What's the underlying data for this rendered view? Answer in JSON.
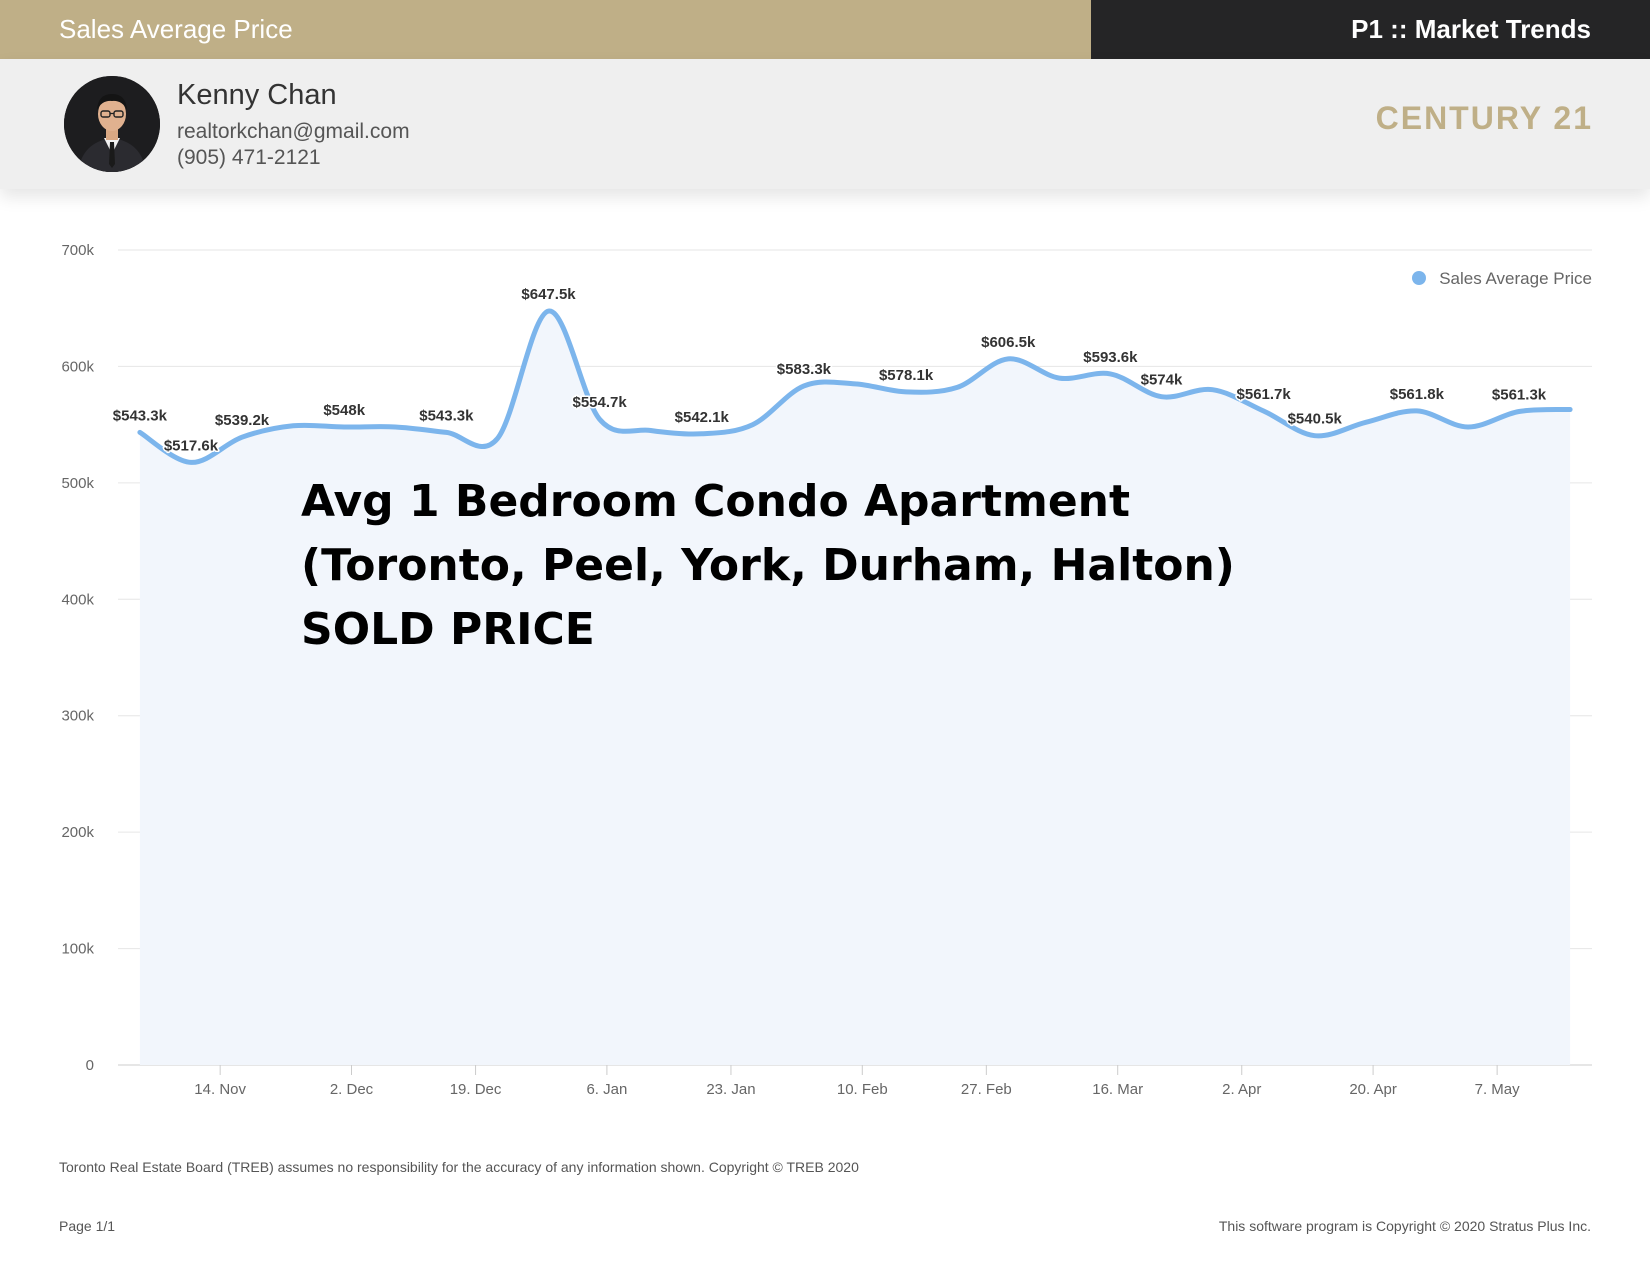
{
  "header": {
    "report_title": "Sales Average Price",
    "page_label": "P1 :: Market Trends"
  },
  "agent": {
    "name": "Kenny Chan",
    "email": "realtorkchan@gmail.com",
    "phone": "(905) 471-2121",
    "brand": "CENTURY 21"
  },
  "chart_data": {
    "type": "area",
    "series": [
      {
        "name": "Sales Average Price",
        "color": "#7cb5ec",
        "points": [
          {
            "x": "2019-11-03",
            "y": 543300,
            "label": "$543.3k"
          },
          {
            "x": "2019-11-10",
            "y": 517600,
            "label": "$517.6k"
          },
          {
            "x": "2019-11-17",
            "y": 539200,
            "label": "$539.2k"
          },
          {
            "x": "2019-11-24",
            "y": 549000,
            "label": ""
          },
          {
            "x": "2019-12-01",
            "y": 548000,
            "label": "$548k"
          },
          {
            "x": "2019-12-08",
            "y": 548000,
            "label": ""
          },
          {
            "x": "2019-12-15",
            "y": 543300,
            "label": "$543.3k"
          },
          {
            "x": "2019-12-22",
            "y": 538000,
            "label": ""
          },
          {
            "x": "2019-12-29",
            "y": 647500,
            "label": "$647.5k"
          },
          {
            "x": "2020-01-05",
            "y": 554700,
            "label": "$554.7k"
          },
          {
            "x": "2020-01-12",
            "y": 545000,
            "label": ""
          },
          {
            "x": "2020-01-19",
            "y": 542100,
            "label": "$542.1k"
          },
          {
            "x": "2020-01-26",
            "y": 550000,
            "label": ""
          },
          {
            "x": "2020-02-02",
            "y": 583300,
            "label": "$583.3k"
          },
          {
            "x": "2020-02-09",
            "y": 585000,
            "label": ""
          },
          {
            "x": "2020-02-16",
            "y": 578100,
            "label": "$578.1k"
          },
          {
            "x": "2020-02-23",
            "y": 582000,
            "label": ""
          },
          {
            "x": "2020-03-01",
            "y": 606500,
            "label": "$606.5k"
          },
          {
            "x": "2020-03-08",
            "y": 590000,
            "label": ""
          },
          {
            "x": "2020-03-15",
            "y": 593600,
            "label": "$593.6k"
          },
          {
            "x": "2020-03-22",
            "y": 574000,
            "label": "$574k"
          },
          {
            "x": "2020-03-29",
            "y": 580000,
            "label": ""
          },
          {
            "x": "2020-04-05",
            "y": 561700,
            "label": "$561.7k"
          },
          {
            "x": "2020-04-12",
            "y": 540500,
            "label": "$540.5k"
          },
          {
            "x": "2020-04-19",
            "y": 552000,
            "label": ""
          },
          {
            "x": "2020-04-26",
            "y": 561800,
            "label": "$561.8k"
          },
          {
            "x": "2020-05-03",
            "y": 548000,
            "label": ""
          },
          {
            "x": "2020-05-10",
            "y": 561300,
            "label": "$561.3k"
          },
          {
            "x": "2020-05-17",
            "y": 563000,
            "label": ""
          }
        ]
      }
    ],
    "x_axis": {
      "type": "datetime",
      "min": "2019-10-31",
      "max": "2020-05-20",
      "ticks": [
        {
          "date": "2019-11-14",
          "label": "14. Nov"
        },
        {
          "date": "2019-12-02",
          "label": "2. Dec"
        },
        {
          "date": "2019-12-19",
          "label": "19. Dec"
        },
        {
          "date": "2020-01-06",
          "label": "6. Jan"
        },
        {
          "date": "2020-01-23",
          "label": "23. Jan"
        },
        {
          "date": "2020-02-10",
          "label": "10. Feb"
        },
        {
          "date": "2020-02-27",
          "label": "27. Feb"
        },
        {
          "date": "2020-03-16",
          "label": "16. Mar"
        },
        {
          "date": "2020-04-02",
          "label": "2. Apr"
        },
        {
          "date": "2020-04-20",
          "label": "20. Apr"
        },
        {
          "date": "2020-05-07",
          "label": "7. May"
        }
      ]
    },
    "y_axis": {
      "min": 0,
      "max": 700000,
      "ticks": [
        {
          "value": 0,
          "label": "0"
        },
        {
          "value": 100000,
          "label": "100k"
        },
        {
          "value": 200000,
          "label": "200k"
        },
        {
          "value": 300000,
          "label": "300k"
        },
        {
          "value": 400000,
          "label": "400k"
        },
        {
          "value": 500000,
          "label": "500k"
        },
        {
          "value": 600000,
          "label": "600k"
        },
        {
          "value": 700000,
          "label": "700k"
        }
      ]
    },
    "grid": true,
    "legend": {
      "placement": "top-right",
      "label": "Sales Average Price"
    },
    "annotation": "Avg 1 Bedroom Condo Apartment (Toronto, Peel, York, Durham, Halton) SOLD PRICE",
    "colors": {
      "line": "#7cb5ec",
      "area": "#f2f6fc",
      "grid": "#e6e6e6"
    }
  },
  "footer": {
    "disclaimer": "Toronto Real Estate Board (TREB) assumes no responsibility for the accuracy of any information shown. Copyright © TREB 2020",
    "page": "Page 1/1",
    "copyright": "This software program is Copyright © 2020 Stratus Plus Inc."
  }
}
